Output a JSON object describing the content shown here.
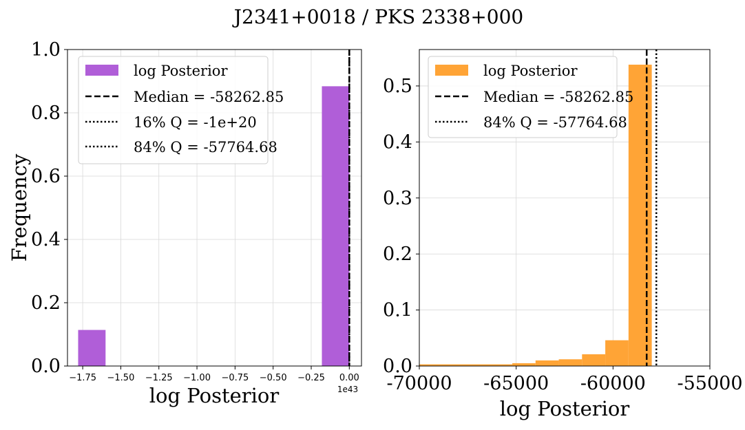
{
  "figure": {
    "title": "J2341+0018 / PKS 2338+000"
  },
  "chart_data": [
    {
      "type": "bar",
      "xlabel": "log Posterior",
      "ylabel": "Frequency",
      "x_offset_label": "1e43",
      "xlim": [
        -1.85,
        0.08
      ],
      "ylim": [
        0.0,
        1.0
      ],
      "grid": true,
      "legend_placement": "top-left",
      "x_ticks": [
        -1.75,
        -1.5,
        -1.25,
        -1.0,
        -0.75,
        -0.5,
        -0.25,
        0.0
      ],
      "x_tick_labels": [
        "−1.75",
        "−1.50",
        "−1.25",
        "−1.00",
        "−0.75",
        "−0.50",
        "−0.25",
        "0.00"
      ],
      "y_ticks": [
        0.0,
        0.2,
        0.4,
        0.6,
        0.8,
        1.0
      ],
      "y_tick_labels": [
        "0.0",
        "0.2",
        "0.4",
        "0.6",
        "0.8",
        "1.0"
      ],
      "bars": [
        {
          "x0": -1.78,
          "x1": -1.6,
          "value": 0.114
        },
        {
          "x0": -0.18,
          "x1": 0.0,
          "value": 0.884
        }
      ],
      "bar_color": "#b05ed8",
      "series_label": "log Posterior",
      "vlines": [
        {
          "x": 0.0,
          "style": "dashed",
          "label": "Median = -58262.85"
        },
        {
          "x": -1e-23,
          "style": "dotted",
          "label": "16% Q = -1e+20"
        },
        {
          "x": 0.0,
          "style": "dotted",
          "label": "84% Q = -57764.68"
        }
      ]
    },
    {
      "type": "bar",
      "xlabel": "log Posterior",
      "xlim": [
        -70000,
        -55000
      ],
      "ylim": [
        0.0,
        0.565
      ],
      "grid": true,
      "legend_placement": "top-left",
      "x_ticks": [
        -70000,
        -65000,
        -60000,
        -55000
      ],
      "x_tick_labels": [
        "-70000",
        "-65000",
        "-60000",
        "-55000"
      ],
      "y_ticks": [
        0.0,
        0.1,
        0.2,
        0.3,
        0.4,
        0.5
      ],
      "y_tick_labels": [
        "0.0",
        "0.1",
        "0.2",
        "0.3",
        "0.4",
        "0.5"
      ],
      "bars": [
        {
          "x0": -70000,
          "x1": -65200,
          "value": 0.003
        },
        {
          "x0": -65200,
          "x1": -64000,
          "value": 0.005
        },
        {
          "x0": -64000,
          "x1": -62800,
          "value": 0.01
        },
        {
          "x0": -62800,
          "x1": -61600,
          "value": 0.012
        },
        {
          "x0": -61600,
          "x1": -60400,
          "value": 0.021
        },
        {
          "x0": -60400,
          "x1": -59200,
          "value": 0.046
        },
        {
          "x0": -59200,
          "x1": -58000,
          "value": 0.538
        }
      ],
      "bar_color": "#ffa436",
      "series_label": "log Posterior",
      "vlines": [
        {
          "x": -58262.85,
          "style": "dashed",
          "label": "Median = -58262.85"
        },
        {
          "x": -57764.68,
          "style": "dotted",
          "label": "84% Q = -57764.68"
        }
      ]
    }
  ]
}
